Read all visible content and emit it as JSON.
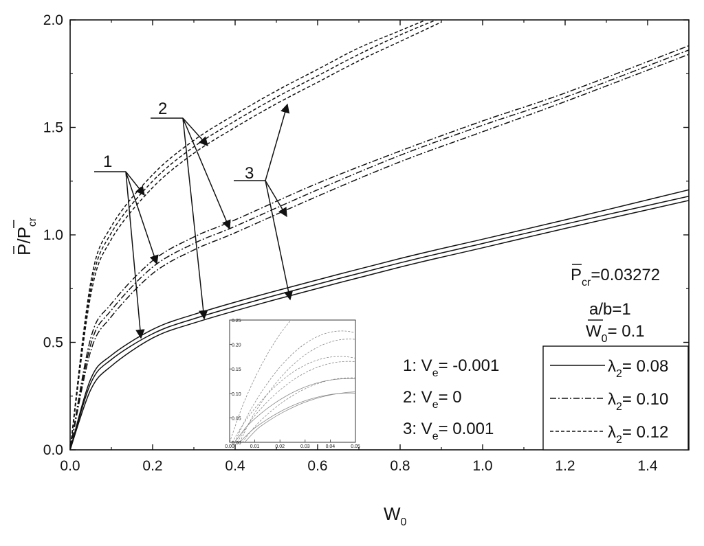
{
  "chart_data": {
    "type": "line",
    "xlabel": "W",
    "xlabel_sub": "0",
    "ylabel": "P/P",
    "ylabel_sub": "cr",
    "xlim": [
      0,
      1.5
    ],
    "ylim": [
      0,
      2.0
    ],
    "x_ticks": [
      "0.0",
      "0.2",
      "0.4",
      "0.6",
      "0.8",
      "1.0",
      "1.2",
      "1.4"
    ],
    "y_ticks": [
      "0.0",
      "0.5",
      "1.0",
      "1.5",
      "2.0"
    ],
    "legend_placement": "bottom-right",
    "legend": [
      {
        "label": "λ",
        "sub": "2",
        "value": "= 0.08",
        "style": "solid"
      },
      {
        "label": "λ",
        "sub": "2",
        "value": "= 0.10",
        "style": "dashdot"
      },
      {
        "label": "λ",
        "sub": "2",
        "value": "= 0.12",
        "style": "dashed"
      }
    ],
    "params": {
      "pcr_label": "P",
      "pcr_sub": "cr",
      "pcr_value": "=0.03272",
      "ab": "a/b=1",
      "w0_label": "W",
      "w0_sub": "0",
      "w0_value": "= 0.1"
    },
    "ve_notes": [
      {
        "prefix": "1: V",
        "sub": "e",
        "value": "= -0.001"
      },
      {
        "prefix": "2: V",
        "sub": "e",
        "value": "=  0"
      },
      {
        "prefix": "3: V",
        "sub": "e",
        "value": "=  0.001"
      }
    ],
    "group_labels": [
      "1",
      "2",
      "3"
    ],
    "series": [
      {
        "lambda": 0.08,
        "ve": -0.001,
        "style": "solid",
        "x": [
          0,
          0.05,
          0.1,
          0.2,
          0.3,
          0.5,
          0.8,
          1.0,
          1.2,
          1.5
        ],
        "y": [
          0,
          0.33,
          0.44,
          0.56,
          0.63,
          0.74,
          0.89,
          0.98,
          1.07,
          1.21
        ]
      },
      {
        "lambda": 0.08,
        "ve": 0,
        "style": "solid",
        "x": [
          0,
          0.05,
          0.1,
          0.2,
          0.3,
          0.5,
          0.8,
          1.0,
          1.2,
          1.5
        ],
        "y": [
          0,
          0.31,
          0.42,
          0.54,
          0.61,
          0.72,
          0.87,
          0.96,
          1.05,
          1.18
        ]
      },
      {
        "lambda": 0.08,
        "ve": 0.001,
        "style": "solid",
        "x": [
          0,
          0.05,
          0.1,
          0.2,
          0.3,
          0.5,
          0.8,
          1.0,
          1.2,
          1.5
        ],
        "y": [
          0,
          0.28,
          0.39,
          0.52,
          0.59,
          0.7,
          0.85,
          0.94,
          1.03,
          1.16
        ]
      },
      {
        "lambda": 0.1,
        "ve": -0.001,
        "style": "dashdot",
        "x": [
          0,
          0.05,
          0.1,
          0.2,
          0.3,
          0.4,
          0.6,
          0.8,
          1.0,
          1.2,
          1.5
        ],
        "y": [
          0,
          0.52,
          0.68,
          0.88,
          0.99,
          1.07,
          1.24,
          1.39,
          1.53,
          1.66,
          1.88
        ]
      },
      {
        "lambda": 0.1,
        "ve": 0,
        "style": "dashdot",
        "x": [
          0,
          0.05,
          0.1,
          0.2,
          0.3,
          0.4,
          0.6,
          0.8,
          1.0,
          1.2,
          1.5
        ],
        "y": [
          0,
          0.49,
          0.65,
          0.85,
          0.96,
          1.04,
          1.21,
          1.37,
          1.51,
          1.64,
          1.86
        ]
      },
      {
        "lambda": 0.1,
        "ve": 0.001,
        "style": "dashdot",
        "x": [
          0,
          0.05,
          0.1,
          0.2,
          0.3,
          0.4,
          0.6,
          0.8,
          1.0,
          1.2,
          1.5
        ],
        "y": [
          0,
          0.46,
          0.62,
          0.82,
          0.93,
          1.01,
          1.18,
          1.34,
          1.48,
          1.62,
          1.84
        ]
      },
      {
        "lambda": 0.12,
        "ve": -0.001,
        "style": "dashed",
        "x": [
          0,
          0.05,
          0.1,
          0.2,
          0.3,
          0.4,
          0.5,
          0.6,
          0.7,
          0.8,
          0.9
        ],
        "y": [
          0,
          0.78,
          1.04,
          1.28,
          1.44,
          1.56,
          1.67,
          1.77,
          1.87,
          1.95,
          2.03
        ]
      },
      {
        "lambda": 0.12,
        "ve": 0,
        "style": "dashed",
        "x": [
          0,
          0.05,
          0.1,
          0.2,
          0.3,
          0.4,
          0.5,
          0.6,
          0.7,
          0.8,
          0.9
        ],
        "y": [
          0,
          0.75,
          1.01,
          1.25,
          1.41,
          1.53,
          1.64,
          1.74,
          1.84,
          1.93,
          2.01
        ]
      },
      {
        "lambda": 0.12,
        "ve": 0.001,
        "style": "dashed",
        "x": [
          0,
          0.05,
          0.1,
          0.2,
          0.3,
          0.4,
          0.5,
          0.6,
          0.7,
          0.8,
          0.9
        ],
        "y": [
          0,
          0.72,
          0.98,
          1.22,
          1.38,
          1.5,
          1.61,
          1.71,
          1.81,
          1.9,
          1.99
        ]
      }
    ],
    "inset": {
      "xlim": [
        0,
        0.05
      ],
      "ylim": [
        0,
        0.25
      ],
      "x_ticks": [
        "0.00",
        "0.01",
        "0.02",
        "0.03",
        "0.04",
        "0.05"
      ],
      "y_ticks": [
        "0.00",
        "0.05",
        "0.10",
        "0.15",
        "0.20",
        "0.25"
      ]
    }
  }
}
